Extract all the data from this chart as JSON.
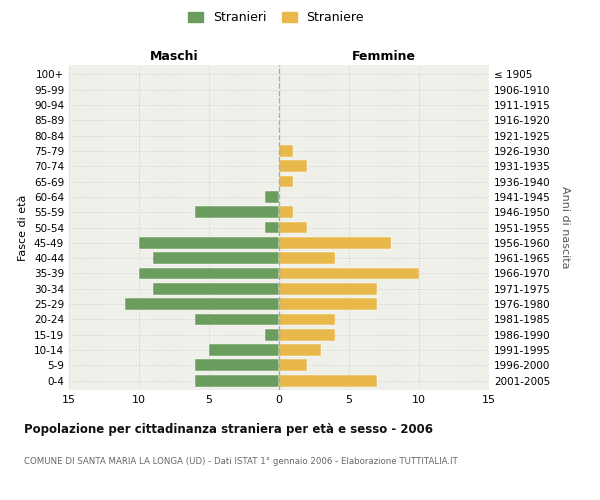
{
  "age_groups": [
    "0-4",
    "5-9",
    "10-14",
    "15-19",
    "20-24",
    "25-29",
    "30-34",
    "35-39",
    "40-44",
    "45-49",
    "50-54",
    "55-59",
    "60-64",
    "65-69",
    "70-74",
    "75-79",
    "80-84",
    "85-89",
    "90-94",
    "95-99",
    "100+"
  ],
  "birth_years": [
    "2001-2005",
    "1996-2000",
    "1991-1995",
    "1986-1990",
    "1981-1985",
    "1976-1980",
    "1971-1975",
    "1966-1970",
    "1961-1965",
    "1956-1960",
    "1951-1955",
    "1946-1950",
    "1941-1945",
    "1936-1940",
    "1931-1935",
    "1926-1930",
    "1921-1925",
    "1916-1920",
    "1911-1915",
    "1906-1910",
    "≤ 1905"
  ],
  "maschi": [
    6,
    6,
    5,
    1,
    6,
    11,
    9,
    10,
    9,
    10,
    1,
    6,
    1,
    0,
    0,
    0,
    0,
    0,
    0,
    0,
    0
  ],
  "femmine": [
    7,
    2,
    3,
    4,
    4,
    7,
    7,
    10,
    4,
    8,
    2,
    1,
    0,
    1,
    2,
    1,
    0,
    0,
    0,
    0,
    0
  ],
  "color_maschi": "#6b9e5e",
  "color_femmine": "#e8b84b",
  "title": "Popolazione per cittadinanza straniera per età e sesso - 2006",
  "subtitle": "COMUNE DI SANTA MARIA LA LONGA (UD) - Dati ISTAT 1° gennaio 2006 - Elaborazione TUTTITALIA.IT",
  "label_maschi": "Maschi",
  "label_femmine": "Femmine",
  "ylabel_left": "Fasce di età",
  "ylabel_right": "Anni di nascita",
  "legend_maschi": "Stranieri",
  "legend_femmine": "Straniere",
  "xlim": 15,
  "background_color": "#ffffff",
  "plot_bg_color": "#f0f0eb"
}
